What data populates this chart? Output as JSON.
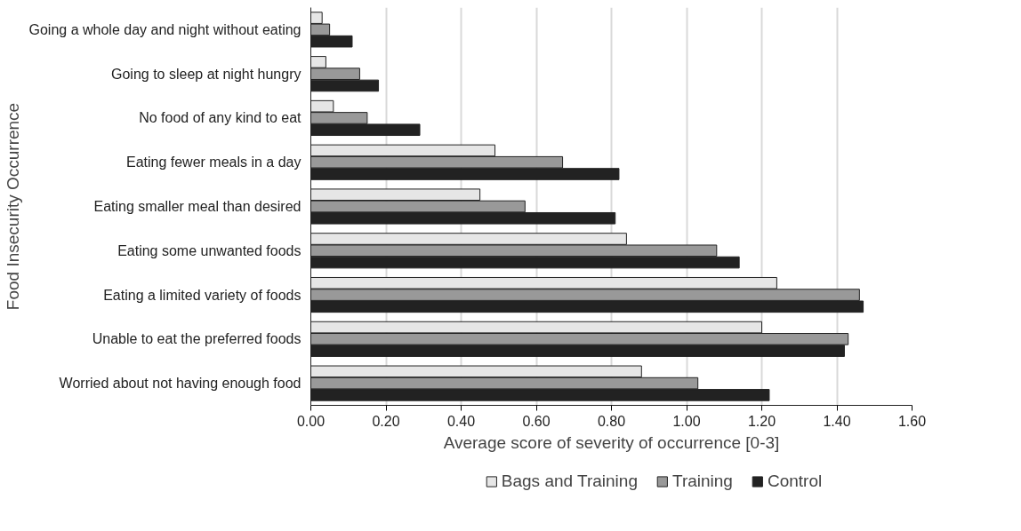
{
  "chart_data": {
    "type": "bar",
    "orientation": "horizontal",
    "xlabel": "Average score of severity of occurrence [0-3]",
    "ylabel": "Food Insecurity Occurrence",
    "categories": [
      "Going a whole day and night without eating",
      "Going to sleep at night hungry",
      "No food of any kind to eat",
      "Eating fewer meals in a day",
      "Eating smaller meal than desired",
      "Eating some unwanted foods",
      "Eating a limited variety of foods",
      "Unable to eat the preferred foods",
      "Worried about not having enough food"
    ],
    "series": [
      {
        "name": "Bags and Training",
        "color": "#e6e6e6",
        "values": [
          0.03,
          0.04,
          0.06,
          0.49,
          0.45,
          0.84,
          1.24,
          1.2,
          0.88
        ]
      },
      {
        "name": "Training",
        "color": "#999999",
        "values": [
          0.05,
          0.13,
          0.15,
          0.67,
          0.57,
          1.08,
          1.46,
          1.43,
          1.03
        ]
      },
      {
        "name": "Control",
        "color": "#222222",
        "values": [
          0.11,
          0.18,
          0.29,
          0.82,
          0.81,
          1.14,
          1.47,
          1.42,
          1.22
        ]
      }
    ],
    "xlim": [
      0,
      1.6
    ],
    "xticks": [
      {
        "value": 0,
        "label": "0.00"
      },
      {
        "value": 0.2,
        "label": "0.20"
      },
      {
        "value": 0.4,
        "label": "0.40"
      },
      {
        "value": 0.6,
        "label": "0.60"
      },
      {
        "value": 0.8,
        "label": "0.80"
      },
      {
        "value": 1.0,
        "label": "1.00"
      },
      {
        "value": 1.2,
        "label": "1.20"
      },
      {
        "value": 1.4,
        "label": "1.40"
      },
      {
        "value": 1.6,
        "label": "1.60"
      }
    ],
    "grid": "x",
    "legend": "bottom"
  }
}
